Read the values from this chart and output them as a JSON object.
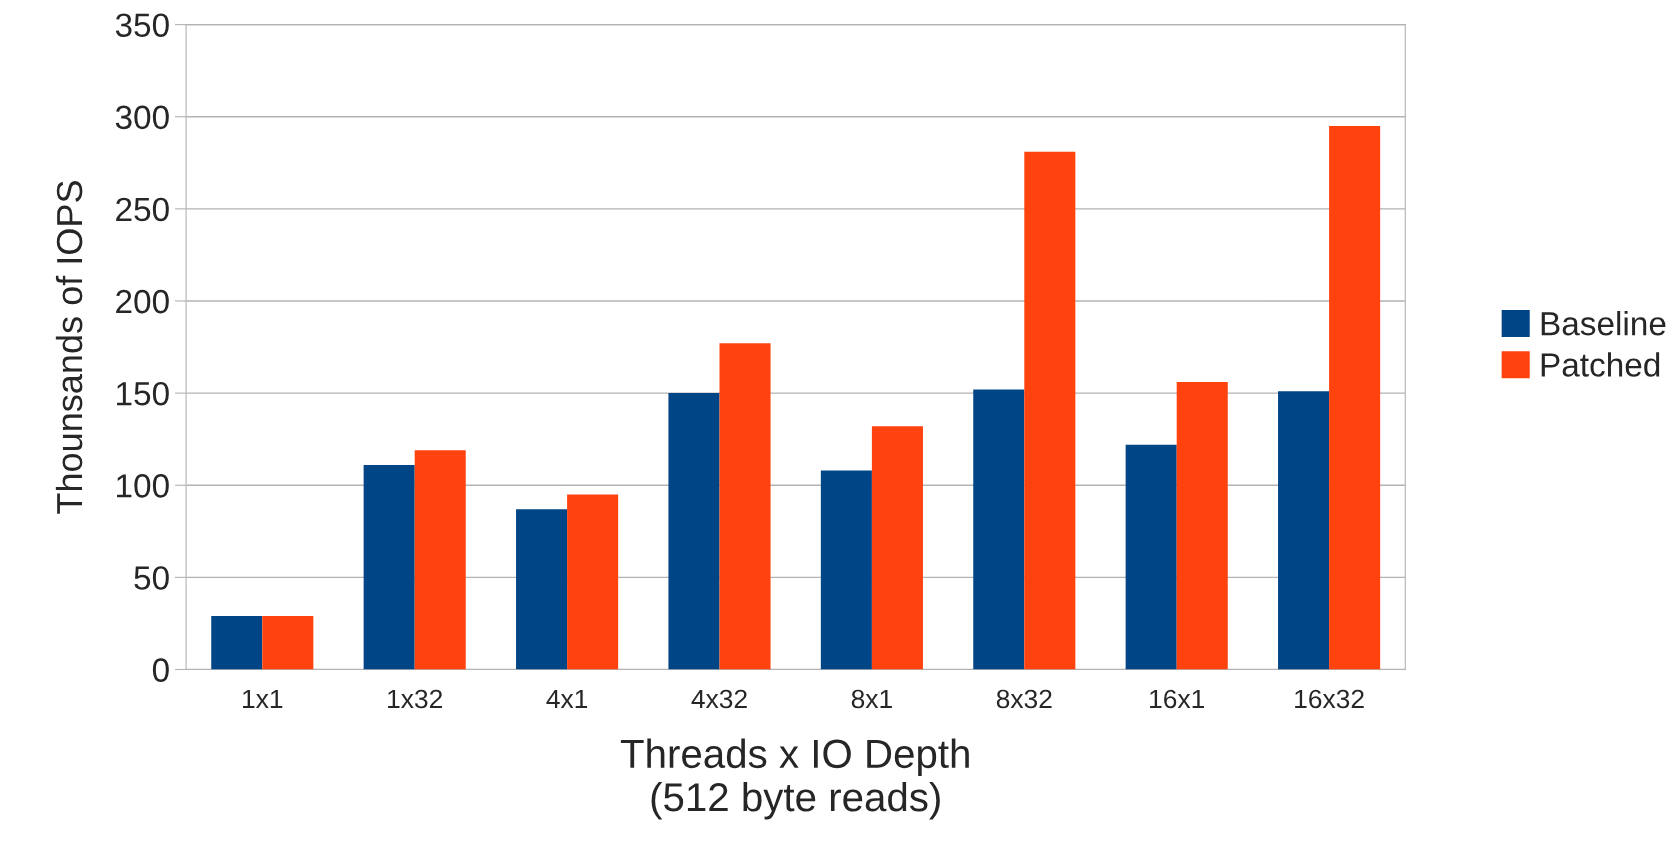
{
  "chart_data": {
    "type": "bar",
    "xlabel": "Threads x IO Depth\n(512 byte reads)",
    "ylabel": "Thounsands of IOPS",
    "categories": [
      "1x1",
      "1x32",
      "4x1",
      "4x32",
      "8x1",
      "8x32",
      "16x1",
      "16x32"
    ],
    "series": [
      {
        "name": "Baseline",
        "color": "#004586",
        "values": [
          29,
          111,
          87,
          150,
          108,
          152,
          122,
          151
        ]
      },
      {
        "name": "Patched",
        "color": "#ff420e",
        "values": [
          29,
          119,
          95,
          177,
          132,
          281,
          156,
          295
        ]
      }
    ],
    "ylim": [
      0,
      350
    ],
    "yticks": [
      0,
      50,
      100,
      150,
      200,
      250,
      300,
      350
    ],
    "grid": "y",
    "legend": "right"
  }
}
